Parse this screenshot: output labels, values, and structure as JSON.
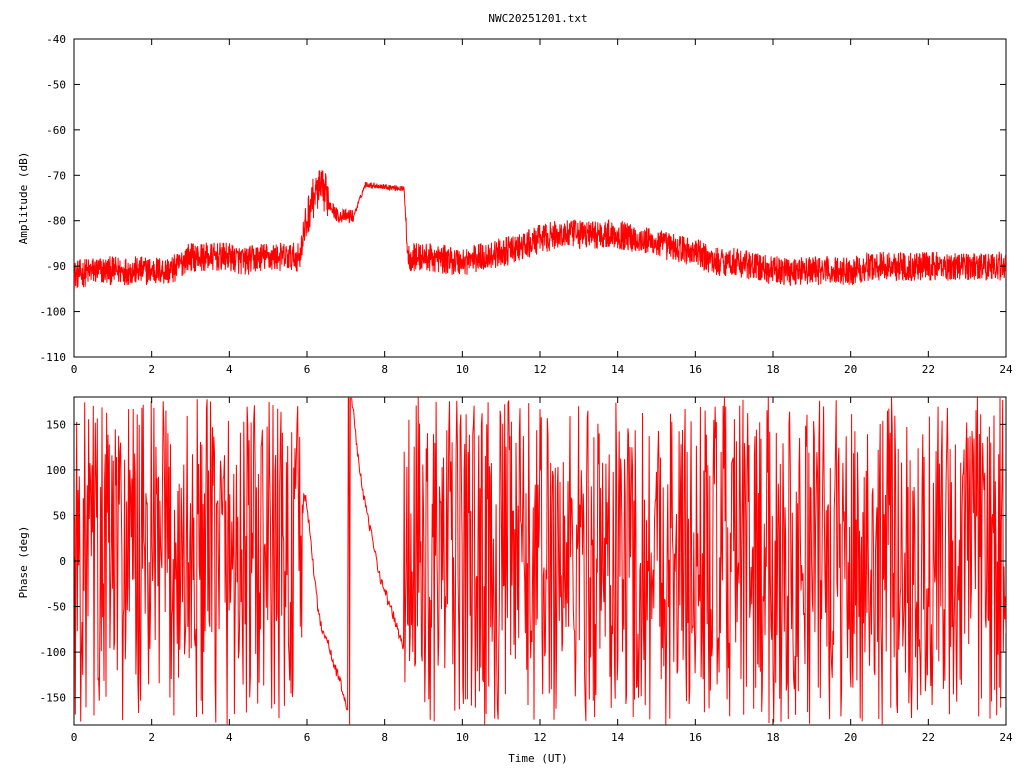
{
  "chart_data": [
    {
      "type": "line",
      "title": "NWC20251201.txt",
      "xlabel": "",
      "ylabel": "Amplitude (dB)",
      "xlim": [
        0,
        24
      ],
      "ylim": [
        -110,
        -40
      ],
      "x_ticks": [
        0,
        2,
        4,
        6,
        8,
        10,
        12,
        14,
        16,
        18,
        20,
        22,
        24
      ],
      "y_ticks": [
        -110,
        -100,
        -90,
        -80,
        -70,
        -60,
        -50,
        -40
      ],
      "grid": false,
      "color": "#ff0000",
      "series": [
        {
          "x": [
            0.0,
            0.5,
            1.0,
            1.5,
            2.0,
            2.5,
            2.7,
            2.9,
            3.2,
            3.5,
            4.0,
            4.4,
            4.8,
            5.3,
            5.8,
            5.95,
            6.1,
            6.3,
            6.5,
            6.7,
            6.8,
            7.0,
            7.2,
            7.5,
            8.0,
            8.5,
            8.6,
            9.0,
            9.5,
            10.0,
            10.5,
            11.0,
            11.5,
            12.0,
            12.5,
            13.0,
            13.5,
            14.0,
            14.5,
            15.0,
            15.5,
            16.0,
            16.5,
            17.0,
            17.5,
            18.0,
            18.5,
            19.0,
            19.5,
            20.0,
            20.5,
            21.0,
            21.5,
            22.0,
            22.5,
            23.0,
            23.5,
            24.0
          ],
          "y": [
            -92,
            -91,
            -91,
            -91,
            -91,
            -91,
            -90,
            -88,
            -88,
            -88,
            -88,
            -89,
            -88,
            -88,
            -88,
            -82,
            -76,
            -73,
            -74,
            -78,
            -79,
            -79,
            -79,
            -72,
            -72.5,
            -73,
            -88,
            -88,
            -88.5,
            -89,
            -88,
            -87,
            -86,
            -84,
            -83,
            -83,
            -83,
            -83,
            -84,
            -85,
            -86,
            -87,
            -89,
            -89,
            -90,
            -91,
            -91,
            -91,
            -91,
            -91,
            -90,
            -90,
            -90,
            -90,
            -90,
            -90,
            -90,
            -90
          ]
        }
      ]
    },
    {
      "type": "line",
      "title": "",
      "xlabel": "Time (UT)",
      "ylabel": "Phase (deg)",
      "xlim": [
        0,
        24
      ],
      "ylim": [
        -180,
        180
      ],
      "x_ticks": [
        0,
        2,
        4,
        6,
        8,
        10,
        12,
        14,
        16,
        18,
        20,
        22,
        24
      ],
      "y_ticks": [
        -150,
        -100,
        -50,
        0,
        50,
        100,
        150
      ],
      "grid": false,
      "color": "#ff0000",
      "series": [
        {
          "x": [
            5.9,
            6.0,
            6.1,
            6.2,
            6.3,
            6.4,
            6.5,
            6.6,
            6.7,
            6.8,
            6.9,
            7.0,
            7.1,
            7.15,
            7.3,
            7.5,
            7.7,
            7.9,
            8.1,
            8.3,
            8.5
          ],
          "y": [
            80,
            60,
            20,
            -20,
            -60,
            -75,
            -85,
            -100,
            -115,
            -125,
            -140,
            -155,
            -175,
            180,
            120,
            60,
            20,
            -20,
            -45,
            -70,
            -100
          ]
        }
      ]
    }
  ]
}
